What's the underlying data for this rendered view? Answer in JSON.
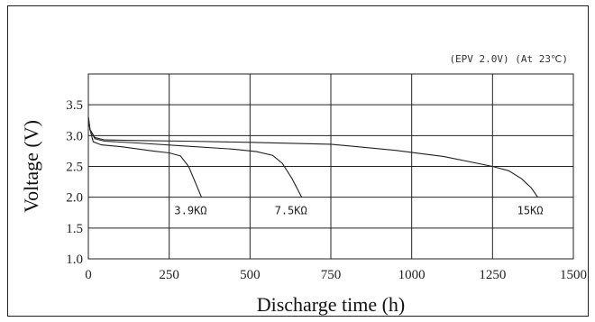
{
  "chart_data": {
    "type": "line",
    "annotation": "(EPV 2.0V) (At 23℃)",
    "xlabel": "Discharge time (h)",
    "ylabel": "Voltage (V)",
    "xlim": [
      0,
      1500
    ],
    "ylim": [
      1.0,
      4.0
    ],
    "x_ticks": [
      "0",
      "250",
      "500",
      "750",
      "1000",
      "1250",
      "1500"
    ],
    "y_ticks": [
      "1.0",
      "1.5",
      "2.0",
      "2.5",
      "3.0",
      "3.5"
    ],
    "grid": true,
    "series": [
      {
        "name": "3.9KΩ",
        "points": [
          [
            0,
            3.3
          ],
          [
            5,
            3.1
          ],
          [
            15,
            2.9
          ],
          [
            40,
            2.85
          ],
          [
            100,
            2.82
          ],
          [
            200,
            2.75
          ],
          [
            250,
            2.72
          ],
          [
            285,
            2.67
          ],
          [
            310,
            2.5
          ],
          [
            330,
            2.25
          ],
          [
            350,
            2.0
          ]
        ]
      },
      {
        "name": "7.5KΩ",
        "points": [
          [
            0,
            3.3
          ],
          [
            5,
            3.1
          ],
          [
            20,
            2.95
          ],
          [
            50,
            2.91
          ],
          [
            150,
            2.88
          ],
          [
            300,
            2.83
          ],
          [
            450,
            2.78
          ],
          [
            520,
            2.74
          ],
          [
            570,
            2.68
          ],
          [
            600,
            2.55
          ],
          [
            630,
            2.3
          ],
          [
            660,
            2.0
          ]
        ]
      },
      {
        "name": "15KΩ",
        "points": [
          [
            0,
            3.3
          ],
          [
            5,
            3.1
          ],
          [
            20,
            2.97
          ],
          [
            50,
            2.93
          ],
          [
            150,
            2.92
          ],
          [
            300,
            2.91
          ],
          [
            500,
            2.89
          ],
          [
            750,
            2.86
          ],
          [
            950,
            2.76
          ],
          [
            1100,
            2.66
          ],
          [
            1250,
            2.5
          ],
          [
            1300,
            2.43
          ],
          [
            1340,
            2.3
          ],
          [
            1370,
            2.15
          ],
          [
            1390,
            2.0
          ]
        ]
      }
    ]
  }
}
